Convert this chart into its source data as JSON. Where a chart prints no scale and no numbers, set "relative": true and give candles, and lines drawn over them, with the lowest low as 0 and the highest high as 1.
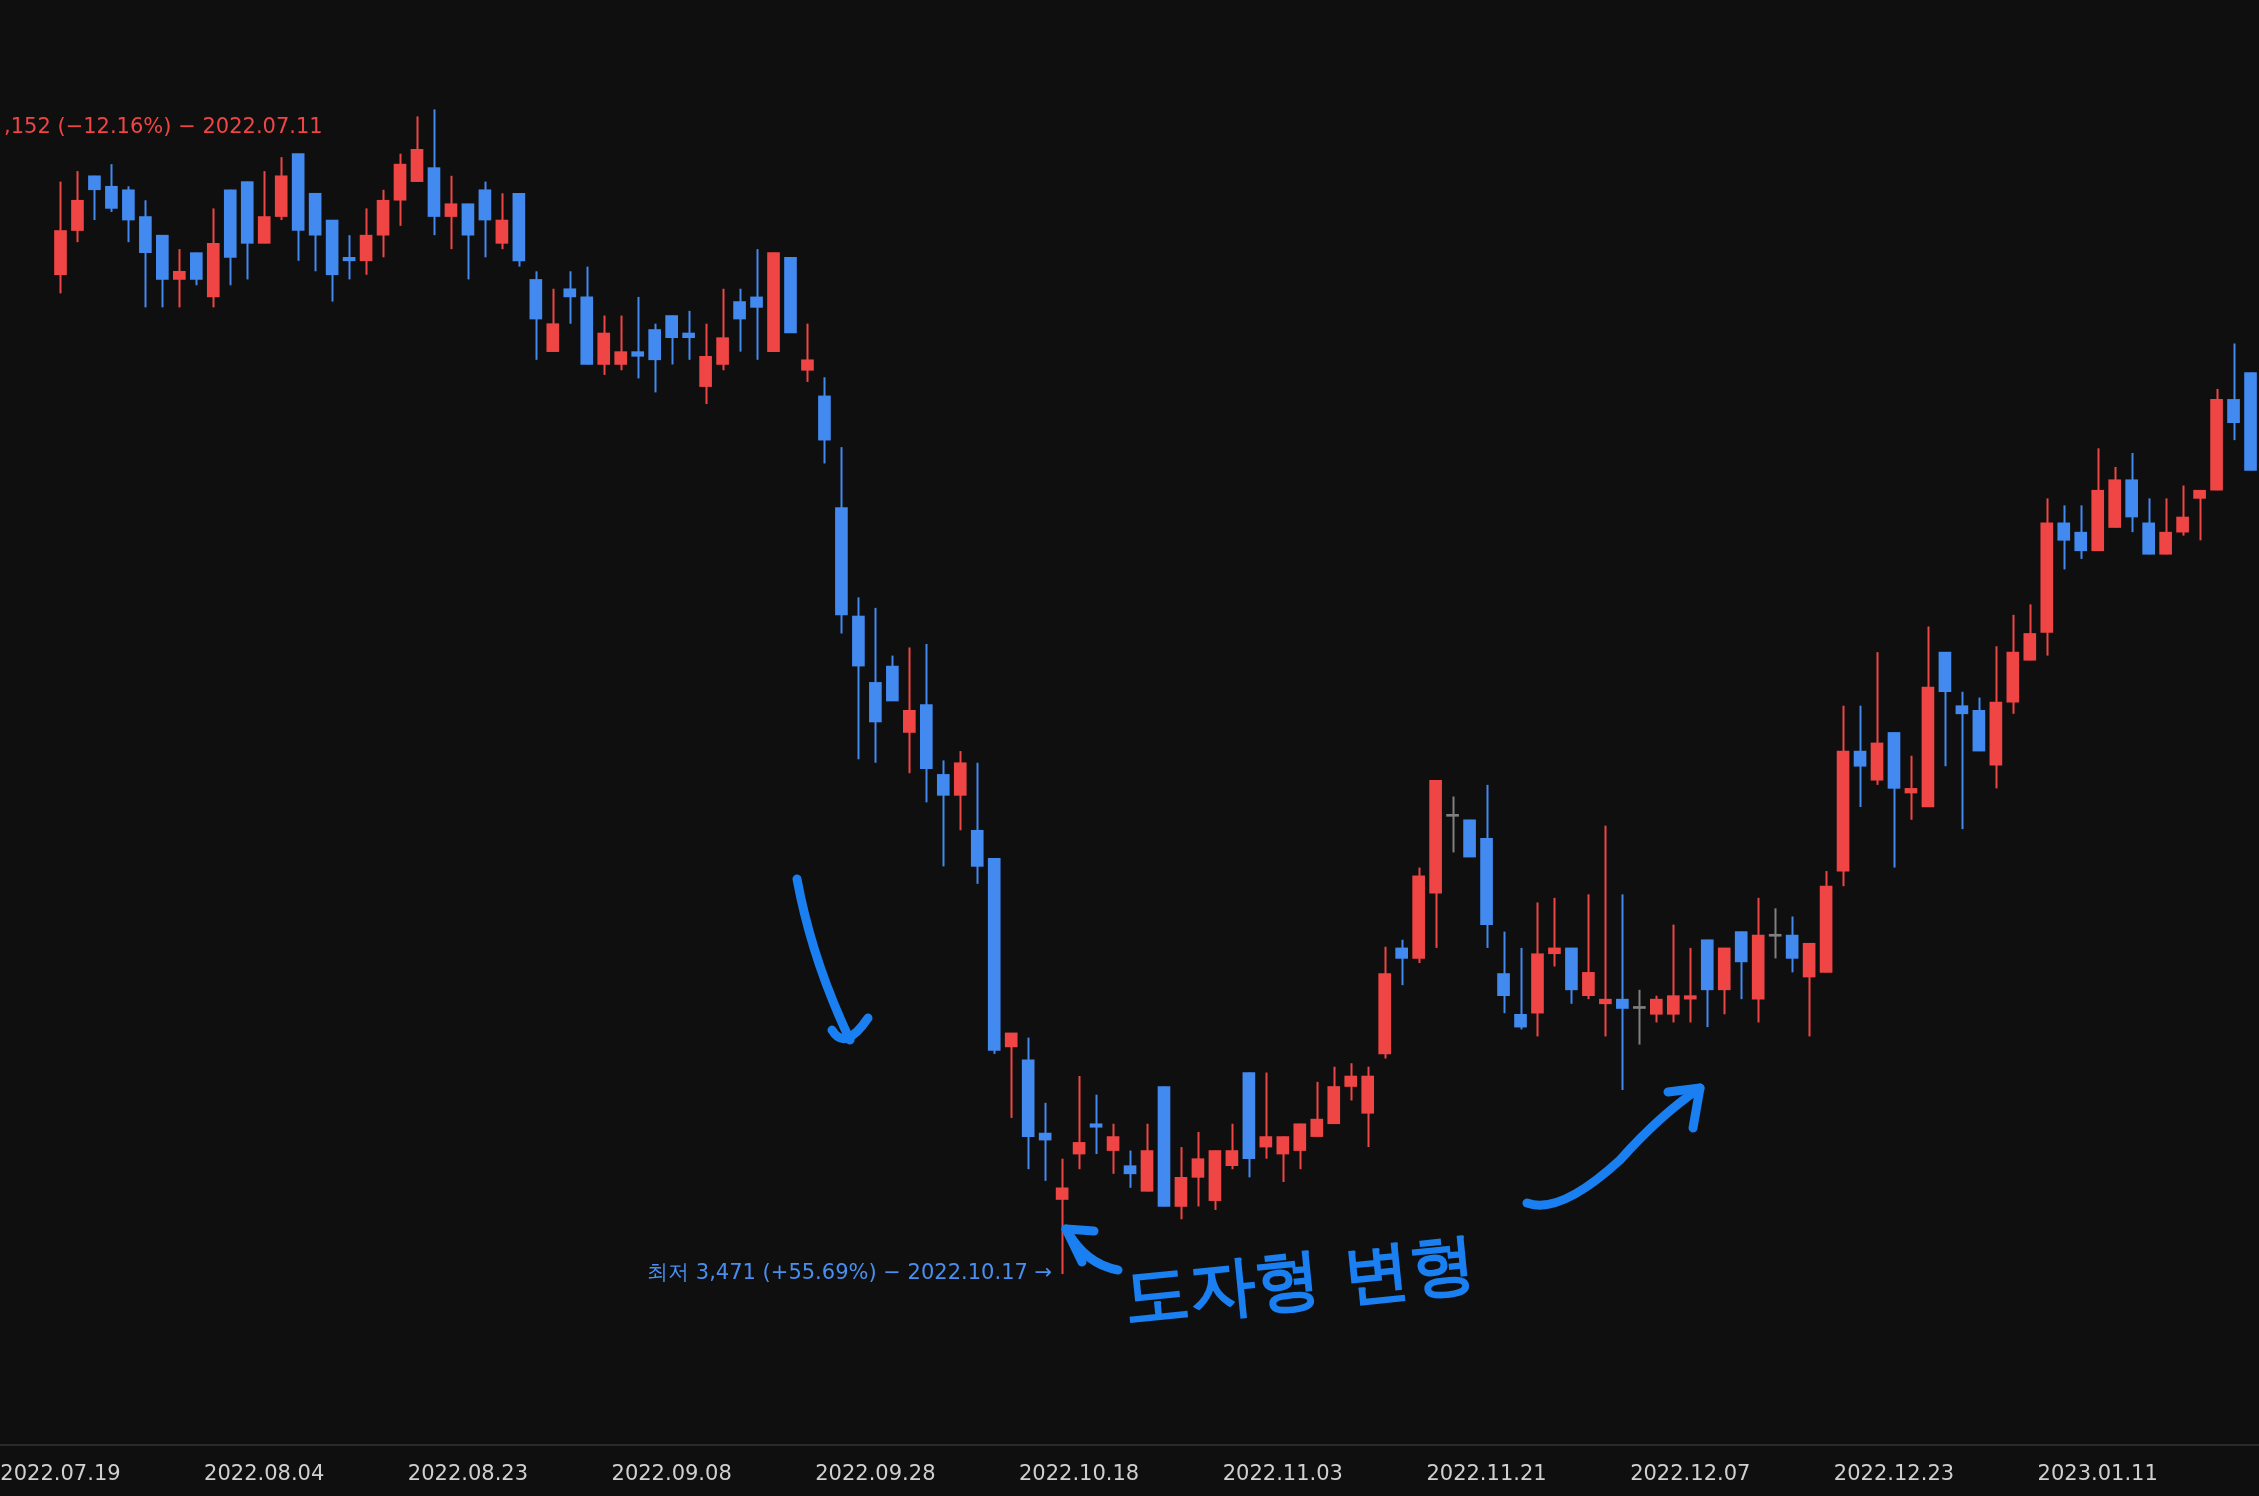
{
  "chart_data": {
    "type": "candlestick",
    "relative": true,
    "categories": [
      "2022.07.19",
      null,
      null,
      null,
      null,
      null,
      null,
      null,
      null,
      null,
      null,
      null,
      "2022.08.04",
      null,
      null,
      null,
      null,
      null,
      null,
      null,
      null,
      null,
      null,
      null,
      "2022.08.23",
      null,
      null,
      null,
      null,
      null,
      null,
      null,
      null,
      null,
      null,
      null,
      "2022.09.08",
      null,
      null,
      null,
      null,
      null,
      null,
      null,
      null,
      null,
      null,
      null,
      "2022.09.28",
      null,
      null,
      null,
      null,
      null,
      null,
      null,
      null,
      null,
      null,
      null,
      "2022.10.18",
      null,
      null,
      null,
      null,
      null,
      null,
      null,
      null,
      null,
      null,
      null,
      "2022.11.03",
      null,
      null,
      null,
      null,
      null,
      null,
      null,
      null,
      null,
      null,
      null,
      "2022.11.21",
      null,
      null,
      null,
      null,
      null,
      null,
      null,
      null,
      null,
      null,
      null,
      "2022.12.07",
      null,
      null,
      null,
      null,
      null,
      null,
      null,
      null,
      null,
      null,
      null,
      "2022.12.23",
      null,
      null,
      null,
      null,
      null,
      null,
      null,
      null,
      null,
      null,
      null,
      "2023.01.11",
      null,
      null,
      null,
      null,
      null,
      null,
      null,
      null,
      null
    ],
    "ohlc": [
      [
        0.858,
        0.938,
        0.842,
        0.896
      ],
      [
        0.896,
        0.947,
        0.886,
        0.922
      ],
      [
        0.943,
        0.943,
        0.905,
        0.931
      ],
      [
        0.934,
        0.953,
        0.912,
        0.915
      ],
      [
        0.931,
        0.934,
        0.886,
        0.905
      ],
      [
        0.908,
        0.922,
        0.83,
        0.877
      ],
      [
        0.892,
        0.892,
        0.83,
        0.854
      ],
      [
        0.854,
        0.88,
        0.83,
        0.861
      ],
      [
        0.877,
        0.877,
        0.849,
        0.854
      ],
      [
        0.839,
        0.915,
        0.83,
        0.885
      ],
      [
        0.931,
        0.931,
        0.849,
        0.873
      ],
      [
        0.938,
        0.938,
        0.854,
        0.885
      ],
      [
        0.885,
        0.947,
        0.885,
        0.908
      ],
      [
        0.908,
        0.959,
        0.905,
        0.943
      ],
      [
        0.962,
        0.962,
        0.87,
        0.896
      ],
      [
        0.928,
        0.928,
        0.861,
        0.892
      ],
      [
        0.905,
        0.905,
        0.835,
        0.858
      ],
      [
        0.873,
        0.892,
        0.854,
        0.87
      ],
      [
        0.87,
        0.915,
        0.858,
        0.892
      ],
      [
        0.892,
        0.931,
        0.873,
        0.922
      ],
      [
        0.922,
        0.962,
        0.9,
        0.953
      ],
      [
        0.938,
        0.994,
        0.938,
        0.966
      ],
      [
        0.95,
        1.0,
        0.892,
        0.908
      ],
      [
        0.908,
        0.943,
        0.88,
        0.919
      ],
      [
        0.919,
        0.919,
        0.854,
        0.892
      ],
      [
        0.931,
        0.938,
        0.873,
        0.905
      ],
      [
        0.885,
        0.928,
        0.88,
        0.905
      ],
      [
        0.928,
        0.928,
        0.865,
        0.87
      ],
      [
        0.854,
        0.861,
        0.785,
        0.82
      ],
      [
        0.792,
        0.846,
        0.792,
        0.816
      ],
      [
        0.846,
        0.861,
        0.816,
        0.839
      ],
      [
        0.839,
        0.865,
        0.781,
        0.781
      ],
      [
        0.781,
        0.823,
        0.772,
        0.808
      ],
      [
        0.781,
        0.823,
        0.776,
        0.792
      ],
      [
        0.792,
        0.839,
        0.769,
        0.788
      ],
      [
        0.811,
        0.816,
        0.757,
        0.785
      ],
      [
        0.823,
        0.823,
        0.781,
        0.804
      ],
      [
        0.808,
        0.827,
        0.785,
        0.804
      ],
      [
        0.762,
        0.816,
        0.747,
        0.788
      ],
      [
        0.781,
        0.846,
        0.776,
        0.804
      ],
      [
        0.835,
        0.846,
        0.792,
        0.82
      ],
      [
        0.839,
        0.88,
        0.785,
        0.83
      ],
      [
        0.792,
        0.877,
        0.792,
        0.877
      ],
      [
        0.873,
        0.873,
        0.808,
        0.808
      ],
      [
        0.776,
        0.816,
        0.766,
        0.785
      ],
      [
        0.754,
        0.77,
        0.696,
        0.716
      ],
      [
        0.658,
        0.71,
        0.55,
        0.566
      ],
      [
        0.565,
        0.581,
        0.442,
        0.522
      ],
      [
        0.508,
        0.572,
        0.439,
        0.474
      ],
      [
        0.522,
        0.531,
        0.492,
        0.492
      ],
      [
        0.465,
        0.538,
        0.43,
        0.484
      ],
      [
        0.489,
        0.541,
        0.405,
        0.434
      ],
      [
        0.429,
        0.441,
        0.35,
        0.411
      ],
      [
        0.411,
        0.449,
        0.381,
        0.439
      ],
      [
        0.381,
        0.439,
        0.335,
        0.35
      ],
      [
        0.357,
        0.357,
        0.189,
        0.192
      ],
      [
        0.195,
        0.207,
        0.134,
        0.207
      ],
      [
        0.184,
        0.203,
        0.09,
        0.118
      ],
      [
        0.121,
        0.147,
        0.08,
        0.115
      ],
      [
        0.064,
        0.099,
        0,
        0.074
      ],
      [
        0.103,
        0.17,
        0.09,
        0.113
      ],
      [
        0.129,
        0.154,
        0.103,
        0.126
      ],
      [
        0.106,
        0.129,
        0.086,
        0.118
      ],
      [
        0.093,
        0.106,
        0.074,
        0.086
      ],
      [
        0.071,
        0.129,
        0.071,
        0.106
      ],
      [
        0.161,
        0.161,
        0.058,
        0.058
      ],
      [
        0.058,
        0.109,
        0.047,
        0.083
      ],
      [
        0.083,
        0.122,
        0.058,
        0.099
      ],
      [
        0.063,
        0.106,
        0.055,
        0.106
      ],
      [
        0.093,
        0.129,
        0.09,
        0.106
      ],
      [
        0.173,
        0.173,
        0.083,
        0.099
      ],
      [
        0.109,
        0.173,
        0.099,
        0.118
      ],
      [
        0.103,
        0.118,
        0.079,
        0.118
      ],
      [
        0.106,
        0.129,
        0.09,
        0.129
      ],
      [
        0.118,
        0.165,
        0.118,
        0.133
      ],
      [
        0.129,
        0.178,
        0.129,
        0.161
      ],
      [
        0.161,
        0.181,
        0.149,
        0.17
      ],
      [
        0.138,
        0.178,
        0.109,
        0.17
      ],
      [
        0.189,
        0.281,
        0.185,
        0.258
      ],
      [
        0.28,
        0.287,
        0.248,
        0.271
      ],
      [
        0.271,
        0.349,
        0.267,
        0.342
      ],
      [
        0.327,
        0.424,
        0.28,
        0.424
      ],
      [
        0.393,
        0.41,
        0.362,
        0.393
      ],
      [
        0.39,
        0.39,
        0.358,
        0.358
      ],
      [
        0.374,
        0.42,
        0.28,
        0.3
      ],
      [
        0.258,
        0.294,
        0.224,
        0.239
      ],
      [
        0.223,
        0.28,
        0.21,
        0.212
      ],
      [
        0.224,
        0.319,
        0.204,
        0.275
      ],
      [
        0.275,
        0.323,
        0.264,
        0.28
      ],
      [
        0.28,
        0.28,
        0.232,
        0.244
      ],
      [
        0.239,
        0.326,
        0.236,
        0.259
      ],
      [
        0.232,
        0.385,
        0.204,
        0.236
      ],
      [
        0.236,
        0.326,
        0.158,
        0.228
      ],
      [
        0.228,
        0.244,
        0.197,
        0.228
      ],
      [
        0.223,
        0.239,
        0.216,
        0.236
      ],
      [
        0.223,
        0.3,
        0.216,
        0.239
      ],
      [
        0.236,
        0.28,
        0.216,
        0.239
      ],
      [
        0.287,
        0.287,
        0.212,
        0.244
      ],
      [
        0.244,
        0.28,
        0.223,
        0.28
      ],
      [
        0.294,
        0.294,
        0.236,
        0.268
      ],
      [
        0.236,
        0.323,
        0.216,
        0.291
      ],
      [
        0.29,
        0.314,
        0.271,
        0.29
      ],
      [
        0.291,
        0.307,
        0.259,
        0.271
      ],
      [
        0.255,
        0.284,
        0.204,
        0.284
      ],
      [
        0.259,
        0.346,
        0.259,
        0.333
      ],
      [
        0.346,
        0.488,
        0.333,
        0.449
      ],
      [
        0.449,
        0.488,
        0.401,
        0.436
      ],
      [
        0.424,
        0.534,
        0.42,
        0.456
      ],
      [
        0.465,
        0.465,
        0.349,
        0.417
      ],
      [
        0.413,
        0.445,
        0.39,
        0.417
      ],
      [
        0.401,
        0.556,
        0.401,
        0.504
      ],
      [
        0.534,
        0.534,
        0.436,
        0.5
      ],
      [
        0.488,
        0.5,
        0.382,
        0.481
      ],
      [
        0.484,
        0.495,
        0.449,
        0.449
      ],
      [
        0.437,
        0.539,
        0.417,
        0.491
      ],
      [
        0.491,
        0.566,
        0.481,
        0.534
      ],
      [
        0.527,
        0.575,
        0.527,
        0.55
      ],
      [
        0.551,
        0.666,
        0.531,
        0.645
      ],
      [
        0.645,
        0.66,
        0.605,
        0.63
      ],
      [
        0.637,
        0.66,
        0.614,
        0.621
      ],
      [
        0.621,
        0.709,
        0.621,
        0.673
      ],
      [
        0.641,
        0.693,
        0.641,
        0.682
      ],
      [
        0.682,
        0.705,
        0.637,
        0.65
      ],
      [
        0.645,
        0.666,
        0.618,
        0.618
      ],
      [
        0.618,
        0.666,
        0.618,
        0.637
      ],
      [
        0.637,
        0.677,
        0.634,
        0.65
      ],
      [
        0.666,
        0.673,
        0.63,
        0.673
      ],
      [
        0.673,
        0.76,
        0.673,
        0.751
      ],
      [
        0.751,
        0.799,
        0.716,
        0.731
      ],
      [
        0.774,
        0.774,
        0.69,
        0.69
      ]
    ],
    "colors": [
      "#f04545",
      "#f04545",
      "#4289f0",
      "#4289f0",
      "#4289f0",
      "#4289f0",
      "#4289f0",
      "#f04545",
      "#4289f0",
      "#f04545",
      "#4289f0",
      "#4289f0",
      "#f04545",
      "#f04545",
      "#4289f0",
      "#4289f0",
      "#4289f0",
      "#4289f0",
      "#f04545",
      "#f04545",
      "#f04545",
      "#f04545",
      "#4289f0",
      "#f04545",
      "#4289f0",
      "#4289f0",
      "#f04545",
      "#4289f0",
      "#4289f0",
      "#f04545",
      "#4289f0",
      "#4289f0",
      "#f04545",
      "#f04545",
      "#4289f0",
      "#4289f0",
      "#4289f0",
      "#4289f0",
      "#f04545",
      "#f04545",
      "#4289f0",
      "#4289f0",
      "#f04545",
      "#4289f0",
      "#f04545",
      "#4289f0",
      "#4289f0",
      "#4289f0",
      "#4289f0",
      "#4289f0",
      "#f04545",
      "#4289f0",
      "#4289f0",
      "#f04545",
      "#4289f0",
      "#4289f0",
      "#f04545",
      "#4289f0",
      "#4289f0",
      "#f04545",
      "#f04545",
      "#4289f0",
      "#f04545",
      "#4289f0",
      "#f04545",
      "#4289f0",
      "#f04545",
      "#f04545",
      "#f04545",
      "#f04545",
      "#4289f0",
      "#f04545",
      "#f04545",
      "#f04545",
      "#f04545",
      "#f04545",
      "#f04545",
      "#f04545",
      "#f04545",
      "#4289f0",
      "#f04545",
      "#f04545",
      "#808080",
      "#4289f0",
      "#4289f0",
      "#4289f0",
      "#4289f0",
      "#f04545",
      "#f04545",
      "#4289f0",
      "#f04545",
      "#f04545",
      "#4289f0",
      "#808080",
      "#f04545",
      "#f04545",
      "#f04545",
      "#4289f0",
      "#f04545",
      "#4289f0",
      "#f04545",
      "#808080",
      "#4289f0",
      "#f04545",
      "#f04545",
      "#f04545",
      "#4289f0",
      "#f04545",
      "#4289f0",
      "#f04545",
      "#f04545",
      "#4289f0",
      "#4289f0",
      "#4289f0",
      "#f04545",
      "#f04545",
      "#f04545",
      "#f04545",
      "#4289f0",
      "#4289f0",
      "#f04545",
      "#f04545",
      "#4289f0",
      "#4289f0",
      "#f04545",
      "#f04545",
      "#f04545",
      "#f04545",
      "#4289f0",
      "#4289f0"
    ],
    "annotations": [
      ",152 (−12.16%) − 2022.07.11",
      "최저 3,471 (+55.69%) − 2022.10.17 →",
      "도자형 변형"
    ]
  }
}
